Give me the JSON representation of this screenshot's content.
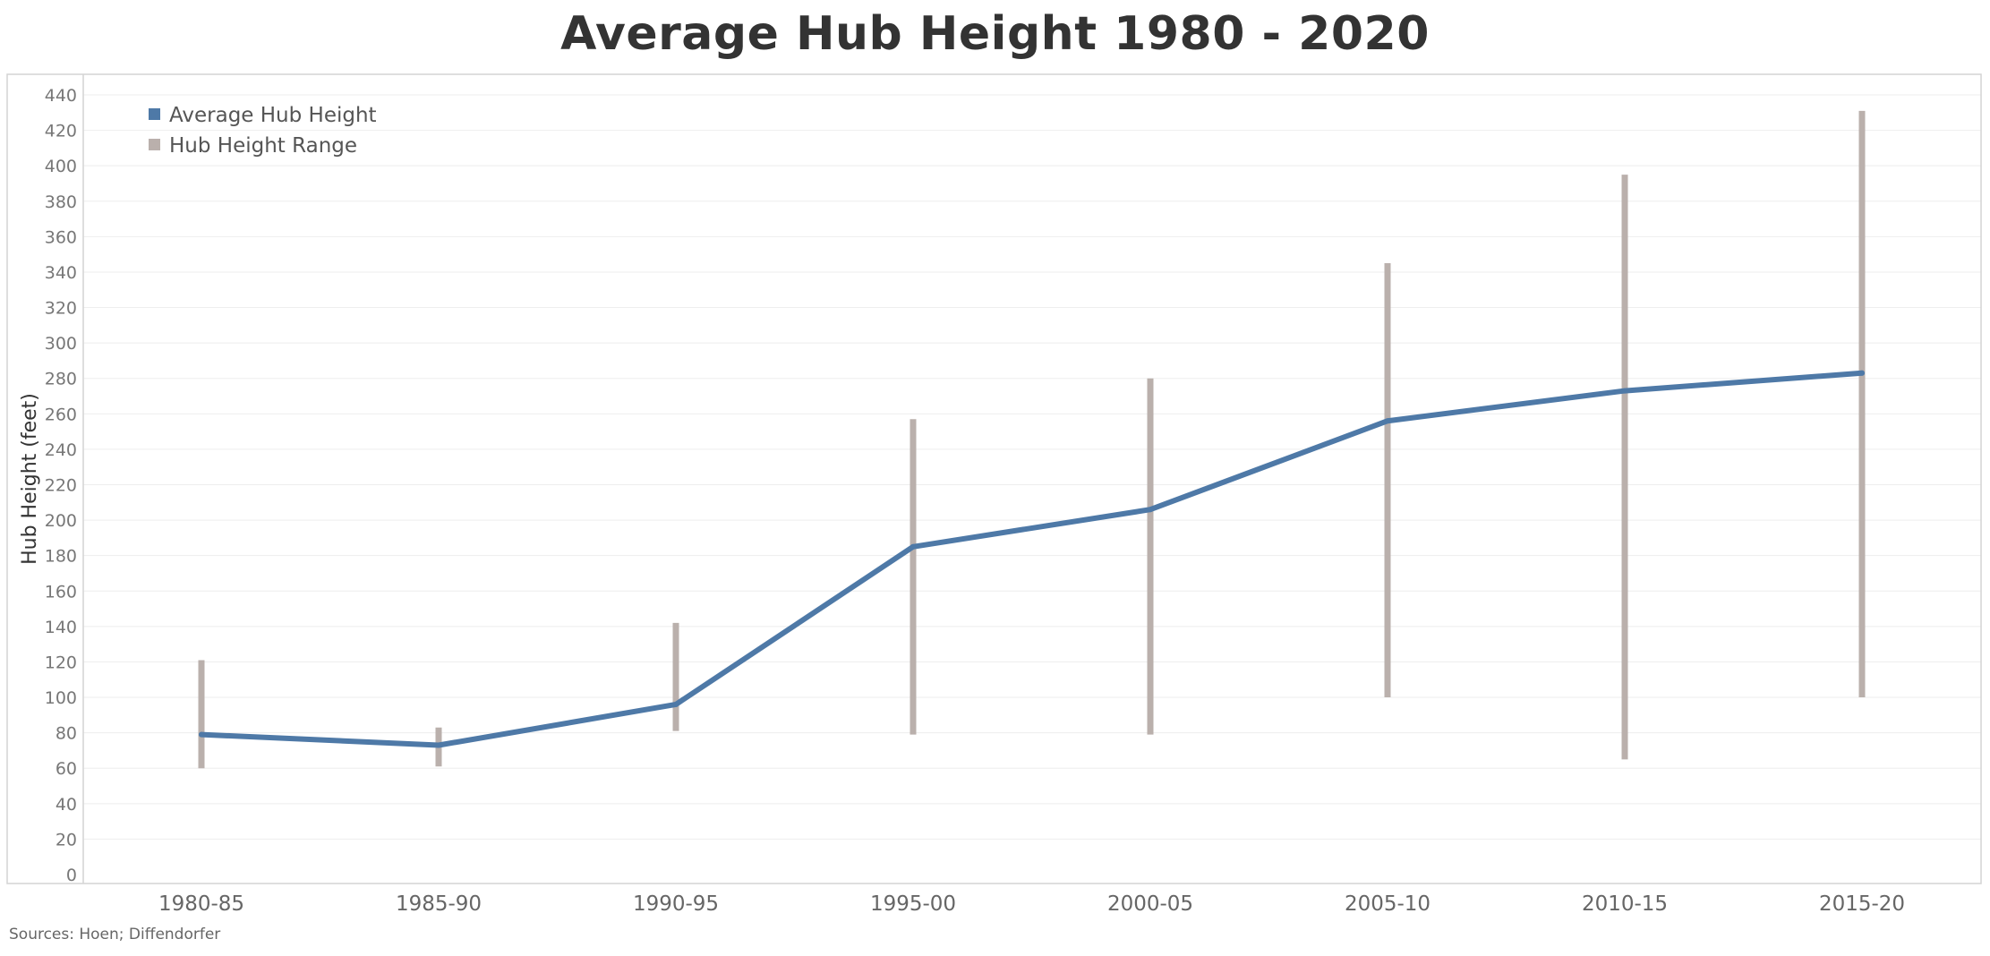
{
  "chart_data": {
    "type": "line",
    "title": "Average Hub Height 1980 - 2020",
    "xlabel": "",
    "ylabel": "Hub Height (feet)",
    "ylim": [
      0,
      440
    ],
    "y_ticks": [
      0,
      20,
      40,
      60,
      80,
      100,
      120,
      140,
      160,
      180,
      200,
      220,
      240,
      260,
      280,
      300,
      320,
      340,
      360,
      380,
      400,
      420,
      440
    ],
    "categories": [
      "1980-85",
      "1985-90",
      "1990-95",
      "1995-00",
      "2000-05",
      "2005-10",
      "2010-15",
      "2015-20"
    ],
    "series": [
      {
        "name": "Average Hub Height",
        "type": "line",
        "color": "#4e79a7",
        "values": [
          79,
          73,
          96,
          185,
          206,
          256,
          273,
          283
        ]
      },
      {
        "name": "Hub Height Range",
        "type": "range",
        "color": "#bab0ac",
        "low": [
          60,
          61,
          81,
          79,
          79,
          100,
          65,
          100
        ],
        "high": [
          121,
          83,
          142,
          257,
          280,
          345,
          395,
          431
        ]
      }
    ],
    "grid": true,
    "legend_position": "top-left",
    "source": "Sources: Hoen; Diffendorfer"
  }
}
